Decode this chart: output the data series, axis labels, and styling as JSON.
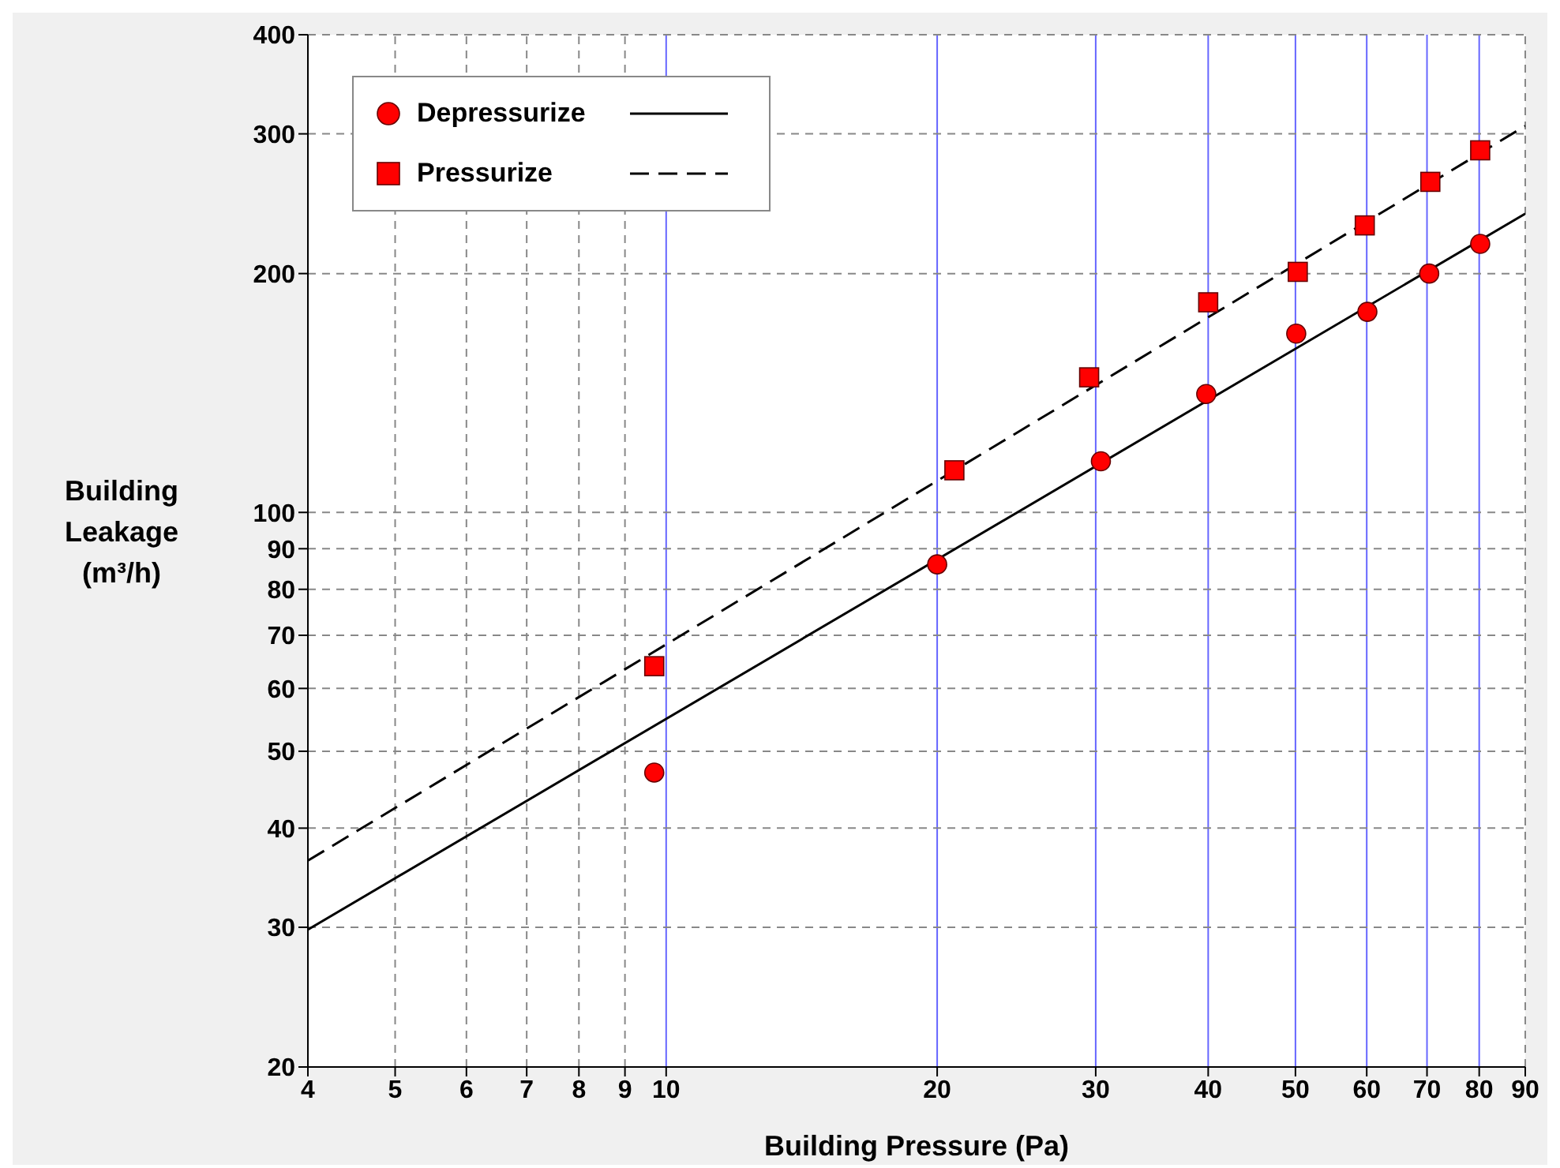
{
  "chart_data": {
    "type": "scatter",
    "xlabel": "Building Pressure (Pa)",
    "ylabel": "Building Leakage (m³/h)",
    "log": "xy",
    "grid": true,
    "legend": "top left",
    "xlim": [
      4,
      90
    ],
    "xticks": [
      4,
      5,
      6,
      7,
      8,
      9,
      10,
      20,
      30,
      40,
      50,
      60,
      70,
      80,
      90
    ],
    "ylim": [
      20,
      400
    ],
    "yticks": [
      20,
      30,
      40,
      50,
      60,
      70,
      80,
      90,
      100,
      200,
      300,
      400
    ],
    "series": [
      {
        "name": "Depressurize",
        "marker": "circle",
        "color": "#ff0000",
        "x": [
          9.7,
          20,
          30.4,
          39.8,
          50.1,
          60.1,
          70.4,
          80.2
        ],
        "values": [
          47,
          86,
          116,
          141,
          168,
          179,
          200,
          218
        ]
      },
      {
        "name": "Pressurize",
        "marker": "square",
        "color": "#ff0000",
        "x": [
          9.7,
          20.9,
          29.5,
          40,
          50.3,
          59.7,
          70.6,
          80.2
        ],
        "values": [
          64,
          113,
          148,
          184,
          201,
          230,
          261,
          286
        ]
      },
      {
        "type": "line",
        "color": "#000000",
        "line_style": "solid",
        "x": [
          4,
          90
        ],
        "values": [
          29.8,
          238
        ]
      },
      {
        "type": "line",
        "color": "#000000",
        "line_style": "dashed",
        "x": [
          4,
          90
        ],
        "values": [
          36.4,
          307
        ]
      }
    ]
  }
}
